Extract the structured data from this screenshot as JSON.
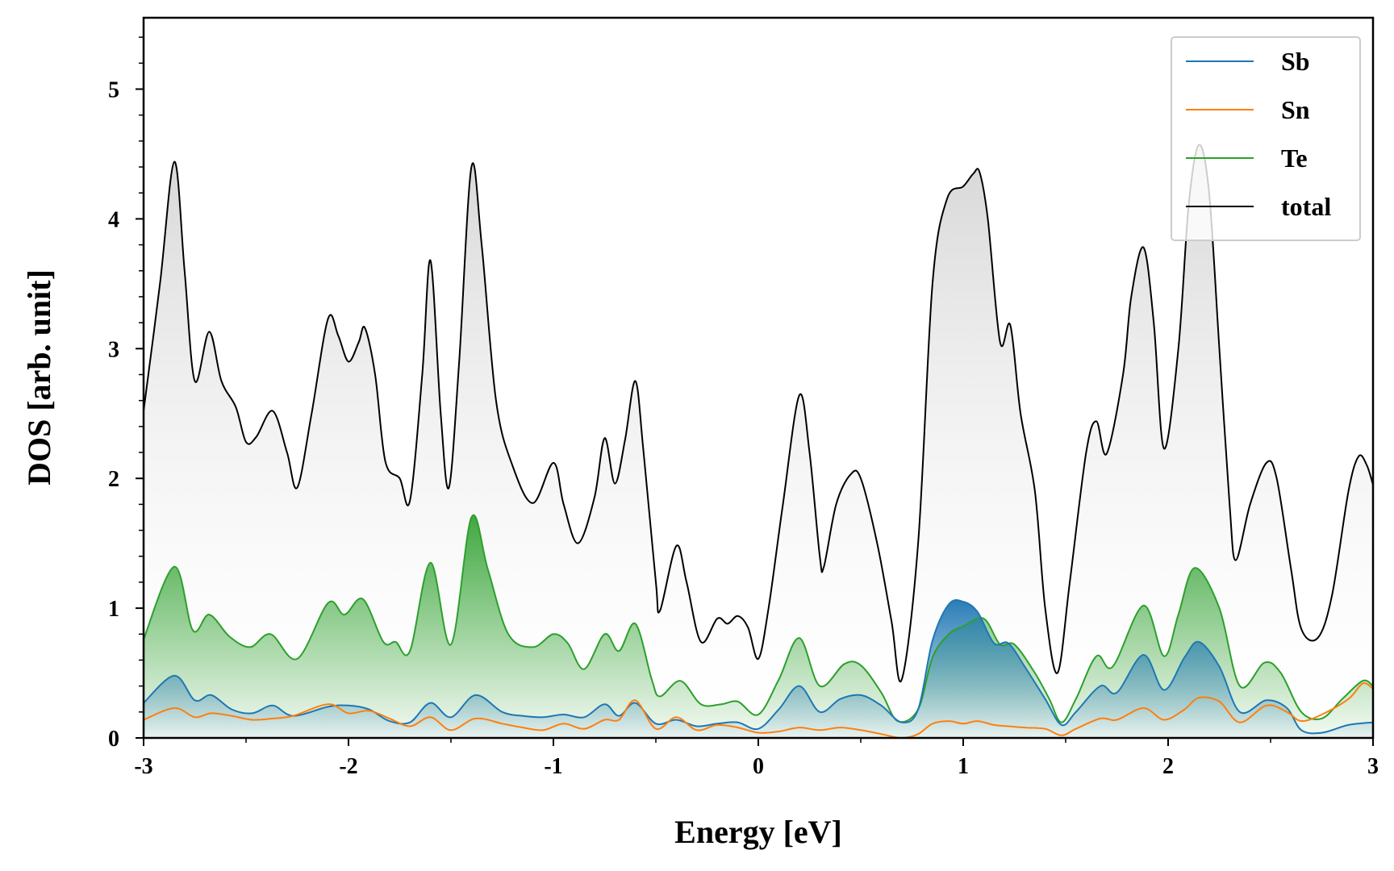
{
  "chart_data": {
    "type": "line",
    "title": "",
    "xlabel": "Energy [eV]",
    "ylabel": "DOS [arb. unit]",
    "xlim": [
      -3,
      3
    ],
    "ylim": [
      0,
      5.55
    ],
    "xticks": [
      -3,
      -2,
      -1,
      0,
      1,
      2,
      3
    ],
    "xtick_labels": [
      "-3",
      "-2",
      "-1",
      "0",
      "1",
      "2",
      "3"
    ],
    "yticks": [
      0,
      1,
      2,
      3,
      4,
      5
    ],
    "ytick_labels": [
      "0",
      "1",
      "2",
      "3",
      "4",
      "5"
    ],
    "legend": {
      "location": "top-right",
      "entries": [
        "Sb",
        "Sn",
        "Te",
        "total"
      ]
    },
    "series": [
      {
        "name": "Sb",
        "color": "#1f77b4",
        "fill": true,
        "points": [
          [
            -3,
            0.27
          ],
          [
            -2.85,
            0.48
          ],
          [
            -2.75,
            0.29
          ],
          [
            -2.67,
            0.33
          ],
          [
            -2.57,
            0.22
          ],
          [
            -2.47,
            0.19
          ],
          [
            -2.37,
            0.25
          ],
          [
            -2.27,
            0.17
          ],
          [
            -2.1,
            0.24
          ],
          [
            -2.0,
            0.25
          ],
          [
            -1.9,
            0.22
          ],
          [
            -1.8,
            0.13
          ],
          [
            -1.7,
            0.12
          ],
          [
            -1.6,
            0.27
          ],
          [
            -1.5,
            0.16
          ],
          [
            -1.38,
            0.33
          ],
          [
            -1.25,
            0.2
          ],
          [
            -1.15,
            0.17
          ],
          [
            -1.05,
            0.16
          ],
          [
            -0.95,
            0.18
          ],
          [
            -0.85,
            0.16
          ],
          [
            -0.75,
            0.26
          ],
          [
            -0.68,
            0.17
          ],
          [
            -0.6,
            0.27
          ],
          [
            -0.5,
            0.11
          ],
          [
            -0.4,
            0.14
          ],
          [
            -0.3,
            0.09
          ],
          [
            -0.2,
            0.11
          ],
          [
            -0.1,
            0.12
          ],
          [
            0,
            0.07
          ],
          [
            0.1,
            0.22
          ],
          [
            0.2,
            0.4
          ],
          [
            0.3,
            0.2
          ],
          [
            0.4,
            0.3
          ],
          [
            0.5,
            0.33
          ],
          [
            0.6,
            0.25
          ],
          [
            0.7,
            0.12
          ],
          [
            0.78,
            0.22
          ],
          [
            0.85,
            0.75
          ],
          [
            0.93,
            1.03
          ],
          [
            1.0,
            1.05
          ],
          [
            1.07,
            0.97
          ],
          [
            1.15,
            0.73
          ],
          [
            1.22,
            0.73
          ],
          [
            1.3,
            0.55
          ],
          [
            1.4,
            0.3
          ],
          [
            1.48,
            0.1
          ],
          [
            1.55,
            0.2
          ],
          [
            1.67,
            0.4
          ],
          [
            1.75,
            0.35
          ],
          [
            1.88,
            0.64
          ],
          [
            1.98,
            0.37
          ],
          [
            2.08,
            0.62
          ],
          [
            2.15,
            0.74
          ],
          [
            2.25,
            0.55
          ],
          [
            2.35,
            0.2
          ],
          [
            2.48,
            0.29
          ],
          [
            2.58,
            0.23
          ],
          [
            2.65,
            0.06
          ],
          [
            2.75,
            0.04
          ],
          [
            2.88,
            0.1
          ],
          [
            3.0,
            0.12
          ]
        ]
      },
      {
        "name": "Sn",
        "color": "#ff7f0e",
        "fill": false,
        "points": [
          [
            -3,
            0.14
          ],
          [
            -2.85,
            0.23
          ],
          [
            -2.75,
            0.16
          ],
          [
            -2.67,
            0.19
          ],
          [
            -2.57,
            0.17
          ],
          [
            -2.47,
            0.14
          ],
          [
            -2.37,
            0.15
          ],
          [
            -2.27,
            0.17
          ],
          [
            -2.1,
            0.26
          ],
          [
            -2.0,
            0.19
          ],
          [
            -1.9,
            0.21
          ],
          [
            -1.8,
            0.15
          ],
          [
            -1.7,
            0.09
          ],
          [
            -1.6,
            0.16
          ],
          [
            -1.5,
            0.06
          ],
          [
            -1.38,
            0.15
          ],
          [
            -1.25,
            0.11
          ],
          [
            -1.15,
            0.08
          ],
          [
            -1.05,
            0.06
          ],
          [
            -0.95,
            0.11
          ],
          [
            -0.85,
            0.07
          ],
          [
            -0.75,
            0.14
          ],
          [
            -0.68,
            0.14
          ],
          [
            -0.6,
            0.29
          ],
          [
            -0.5,
            0.07
          ],
          [
            -0.4,
            0.16
          ],
          [
            -0.3,
            0.06
          ],
          [
            -0.2,
            0.1
          ],
          [
            -0.1,
            0.08
          ],
          [
            0,
            0.04
          ],
          [
            0.1,
            0.05
          ],
          [
            0.2,
            0.08
          ],
          [
            0.3,
            0.06
          ],
          [
            0.4,
            0.08
          ],
          [
            0.5,
            0.06
          ],
          [
            0.6,
            0.03
          ],
          [
            0.7,
            0.0
          ],
          [
            0.78,
            0.03
          ],
          [
            0.85,
            0.11
          ],
          [
            0.93,
            0.13
          ],
          [
            1.0,
            0.11
          ],
          [
            1.07,
            0.13
          ],
          [
            1.15,
            0.1
          ],
          [
            1.22,
            0.09
          ],
          [
            1.3,
            0.08
          ],
          [
            1.4,
            0.07
          ],
          [
            1.48,
            0.02
          ],
          [
            1.55,
            0.07
          ],
          [
            1.67,
            0.15
          ],
          [
            1.75,
            0.14
          ],
          [
            1.88,
            0.23
          ],
          [
            1.98,
            0.14
          ],
          [
            2.08,
            0.22
          ],
          [
            2.15,
            0.31
          ],
          [
            2.25,
            0.28
          ],
          [
            2.35,
            0.12
          ],
          [
            2.48,
            0.25
          ],
          [
            2.58,
            0.2
          ],
          [
            2.65,
            0.13
          ],
          [
            2.75,
            0.18
          ],
          [
            2.88,
            0.3
          ],
          [
            2.95,
            0.42
          ],
          [
            3.0,
            0.38
          ]
        ]
      },
      {
        "name": "Te",
        "color": "#2ca02c",
        "fill": true,
        "points": [
          [
            -3,
            0.76
          ],
          [
            -2.85,
            1.32
          ],
          [
            -2.76,
            0.83
          ],
          [
            -2.68,
            0.95
          ],
          [
            -2.58,
            0.78
          ],
          [
            -2.48,
            0.7
          ],
          [
            -2.38,
            0.8
          ],
          [
            -2.25,
            0.61
          ],
          [
            -2.1,
            1.04
          ],
          [
            -2.02,
            0.95
          ],
          [
            -1.93,
            1.07
          ],
          [
            -1.83,
            0.74
          ],
          [
            -1.77,
            0.74
          ],
          [
            -1.7,
            0.67
          ],
          [
            -1.6,
            1.35
          ],
          [
            -1.5,
            0.72
          ],
          [
            -1.4,
            1.7
          ],
          [
            -1.32,
            1.3
          ],
          [
            -1.22,
            0.8
          ],
          [
            -1.1,
            0.7
          ],
          [
            -1.0,
            0.8
          ],
          [
            -0.93,
            0.73
          ],
          [
            -0.85,
            0.53
          ],
          [
            -0.75,
            0.8
          ],
          [
            -0.68,
            0.67
          ],
          [
            -0.6,
            0.88
          ],
          [
            -0.52,
            0.45
          ],
          [
            -0.48,
            0.32
          ],
          [
            -0.38,
            0.44
          ],
          [
            -0.28,
            0.26
          ],
          [
            -0.18,
            0.26
          ],
          [
            -0.1,
            0.28
          ],
          [
            0,
            0.18
          ],
          [
            0.1,
            0.45
          ],
          [
            0.2,
            0.77
          ],
          [
            0.3,
            0.4
          ],
          [
            0.42,
            0.57
          ],
          [
            0.5,
            0.56
          ],
          [
            0.6,
            0.35
          ],
          [
            0.68,
            0.13
          ],
          [
            0.78,
            0.22
          ],
          [
            0.85,
            0.62
          ],
          [
            0.93,
            0.8
          ],
          [
            1.0,
            0.86
          ],
          [
            1.1,
            0.92
          ],
          [
            1.18,
            0.72
          ],
          [
            1.25,
            0.72
          ],
          [
            1.35,
            0.5
          ],
          [
            1.42,
            0.3
          ],
          [
            1.48,
            0.12
          ],
          [
            1.55,
            0.3
          ],
          [
            1.65,
            0.63
          ],
          [
            1.73,
            0.55
          ],
          [
            1.88,
            1.02
          ],
          [
            1.98,
            0.63
          ],
          [
            2.05,
            0.95
          ],
          [
            2.13,
            1.31
          ],
          [
            2.25,
            1.0
          ],
          [
            2.35,
            0.4
          ],
          [
            2.47,
            0.58
          ],
          [
            2.55,
            0.5
          ],
          [
            2.65,
            0.2
          ],
          [
            2.75,
            0.15
          ],
          [
            2.85,
            0.3
          ],
          [
            2.95,
            0.44
          ],
          [
            3.0,
            0.4
          ]
        ]
      },
      {
        "name": "total",
        "color": "#000000",
        "fill": true,
        "points": [
          [
            -3,
            2.52
          ],
          [
            -2.92,
            3.5
          ],
          [
            -2.85,
            4.44
          ],
          [
            -2.8,
            3.6
          ],
          [
            -2.75,
            2.75
          ],
          [
            -2.68,
            3.13
          ],
          [
            -2.62,
            2.75
          ],
          [
            -2.55,
            2.55
          ],
          [
            -2.5,
            2.28
          ],
          [
            -2.45,
            2.32
          ],
          [
            -2.37,
            2.52
          ],
          [
            -2.3,
            2.2
          ],
          [
            -2.25,
            1.93
          ],
          [
            -2.18,
            2.5
          ],
          [
            -2.1,
            3.23
          ],
          [
            -2.05,
            3.1
          ],
          [
            -2.0,
            2.9
          ],
          [
            -1.95,
            3.05
          ],
          [
            -1.92,
            3.16
          ],
          [
            -1.87,
            2.8
          ],
          [
            -1.82,
            2.13
          ],
          [
            -1.75,
            2.0
          ],
          [
            -1.7,
            1.83
          ],
          [
            -1.64,
            2.8
          ],
          [
            -1.6,
            3.68
          ],
          [
            -1.55,
            2.5
          ],
          [
            -1.51,
            1.93
          ],
          [
            -1.46,
            2.9
          ],
          [
            -1.4,
            4.4
          ],
          [
            -1.35,
            3.8
          ],
          [
            -1.28,
            2.6
          ],
          [
            -1.2,
            2.1
          ],
          [
            -1.1,
            1.81
          ],
          [
            -1.0,
            2.12
          ],
          [
            -0.95,
            1.8
          ],
          [
            -0.88,
            1.5
          ],
          [
            -0.8,
            1.85
          ],
          [
            -0.75,
            2.31
          ],
          [
            -0.7,
            1.96
          ],
          [
            -0.65,
            2.3
          ],
          [
            -0.6,
            2.75
          ],
          [
            -0.56,
            2.2
          ],
          [
            -0.5,
            1.2
          ],
          [
            -0.48,
            0.98
          ],
          [
            -0.4,
            1.48
          ],
          [
            -0.35,
            1.2
          ],
          [
            -0.28,
            0.74
          ],
          [
            -0.2,
            0.92
          ],
          [
            -0.15,
            0.88
          ],
          [
            -0.1,
            0.94
          ],
          [
            -0.05,
            0.85
          ],
          [
            0.0,
            0.61
          ],
          [
            0.05,
            1.0
          ],
          [
            0.12,
            1.8
          ],
          [
            0.2,
            2.64
          ],
          [
            0.25,
            2.2
          ],
          [
            0.3,
            1.4
          ],
          [
            0.32,
            1.32
          ],
          [
            0.38,
            1.8
          ],
          [
            0.45,
            2.03
          ],
          [
            0.5,
            2.0
          ],
          [
            0.58,
            1.5
          ],
          [
            0.65,
            0.9
          ],
          [
            0.7,
            0.45
          ],
          [
            0.78,
            1.5
          ],
          [
            0.85,
            3.5
          ],
          [
            0.92,
            4.15
          ],
          [
            1.0,
            4.25
          ],
          [
            1.05,
            4.35
          ],
          [
            1.08,
            4.36
          ],
          [
            1.12,
            4.0
          ],
          [
            1.18,
            3.05
          ],
          [
            1.23,
            3.18
          ],
          [
            1.28,
            2.5
          ],
          [
            1.35,
            1.9
          ],
          [
            1.4,
            1.0
          ],
          [
            1.46,
            0.5
          ],
          [
            1.52,
            1.2
          ],
          [
            1.6,
            2.2
          ],
          [
            1.65,
            2.44
          ],
          [
            1.7,
            2.19
          ],
          [
            1.78,
            2.8
          ],
          [
            1.82,
            3.4
          ],
          [
            1.88,
            3.78
          ],
          [
            1.93,
            3.2
          ],
          [
            1.98,
            2.23
          ],
          [
            2.05,
            3.0
          ],
          [
            2.1,
            4.1
          ],
          [
            2.15,
            4.57
          ],
          [
            2.2,
            4.2
          ],
          [
            2.25,
            3.0
          ],
          [
            2.3,
            1.8
          ],
          [
            2.33,
            1.37
          ],
          [
            2.4,
            1.8
          ],
          [
            2.48,
            2.12
          ],
          [
            2.53,
            2.0
          ],
          [
            2.6,
            1.3
          ],
          [
            2.65,
            0.84
          ],
          [
            2.73,
            0.77
          ],
          [
            2.8,
            1.1
          ],
          [
            2.88,
            1.9
          ],
          [
            2.93,
            2.17
          ],
          [
            2.97,
            2.1
          ],
          [
            3.0,
            1.95
          ]
        ]
      }
    ]
  }
}
